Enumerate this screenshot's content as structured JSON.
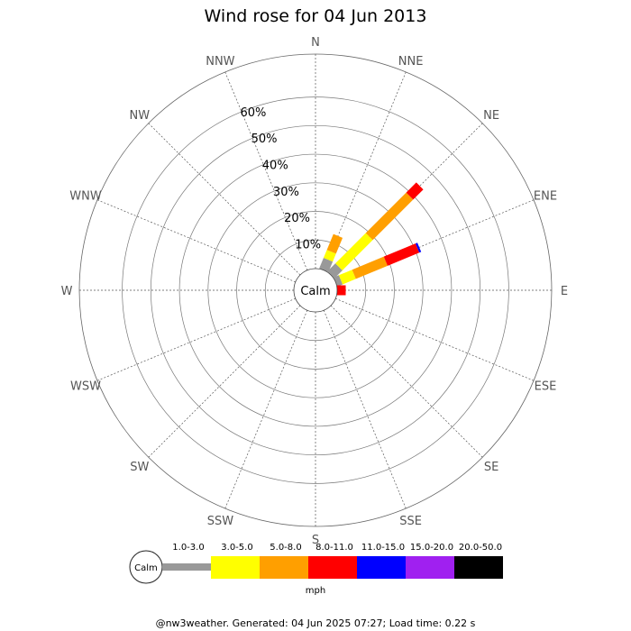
{
  "chart_data": {
    "type": "windrose",
    "title": "Wind rose for 04 Jun 2013",
    "directions": [
      "N",
      "NNE",
      "NE",
      "ENE",
      "E",
      "ESE",
      "SE",
      "SSE",
      "S",
      "SSW",
      "SW",
      "WSW",
      "W",
      "WNW",
      "NW",
      "NNW"
    ],
    "radial_ticks": [
      "10%",
      "20%",
      "30%",
      "40%",
      "50%",
      "60%"
    ],
    "radial_values": [
      10,
      20,
      30,
      40,
      50,
      60
    ],
    "rmax_percent": 75,
    "calm_label": "Calm",
    "unit": "mph",
    "bins": [
      {
        "label": "1.0-3.0",
        "color": "#999999"
      },
      {
        "label": "3.0-5.0",
        "color": "#ffff00"
      },
      {
        "label": "5.0-8.0",
        "color": "#ff9f00"
      },
      {
        "label": "8.0-11.0",
        "color": "#ff0000"
      },
      {
        "label": "11.0-15.0",
        "color": "#0000ff"
      },
      {
        "label": "15.0-20.0",
        "color": "#a020f0"
      },
      {
        "label": "20.0-50.0",
        "color": "#000000"
      }
    ],
    "series": [
      {
        "direction": "NNE",
        "bin_values": [
          4,
          3,
          6,
          0,
          0,
          0,
          0
        ]
      },
      {
        "direction": "NE",
        "bin_values": [
          4,
          15,
          20,
          5,
          0,
          0,
          0
        ]
      },
      {
        "direction": "ENE",
        "bin_values": [
          2,
          5,
          12,
          12,
          0.7,
          0,
          0
        ]
      },
      {
        "direction": "E",
        "bin_values": [
          0,
          0,
          0,
          3,
          0,
          0,
          0
        ]
      }
    ]
  },
  "footer": "@nw3weather. Generated: 04 Jun 2025 07:27; Load time: 0.22 s"
}
